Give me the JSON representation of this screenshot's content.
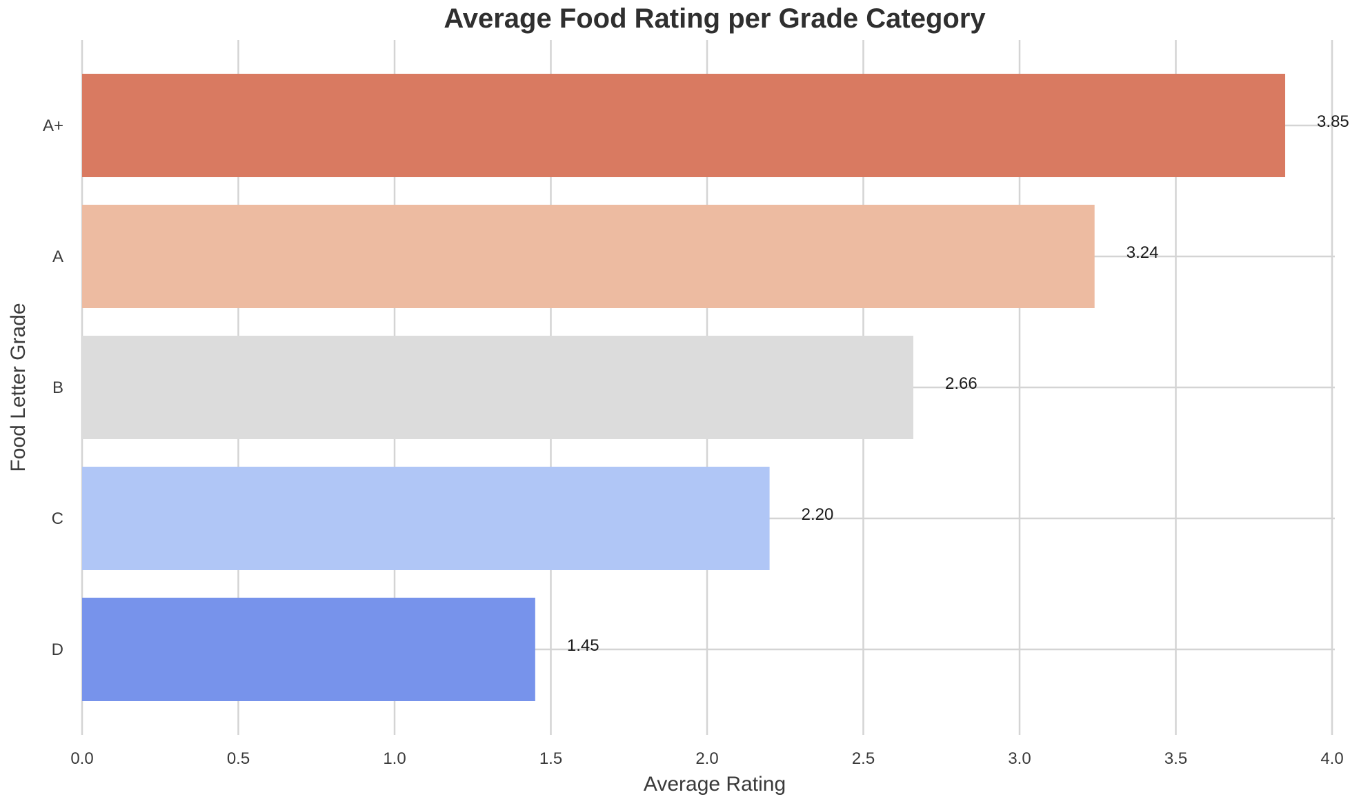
{
  "chart_data": {
    "type": "bar",
    "orientation": "horizontal",
    "title": "Average Food Rating per Grade Category",
    "xlabel": "Average Rating",
    "ylabel": "Food Letter Grade",
    "categories": [
      "A+",
      "A",
      "B",
      "C",
      "D"
    ],
    "values": [
      3.85,
      3.24,
      2.66,
      2.2,
      1.45
    ],
    "value_labels": [
      "3.85",
      "3.24",
      "2.66",
      "2.20",
      "1.45"
    ],
    "colors": [
      "#d97a61",
      "#edbba1",
      "#dcdcdc",
      "#b0c6f6",
      "#7793eb"
    ],
    "xlim": [
      0,
      4.05
    ],
    "xticks": [
      0.0,
      0.5,
      1.0,
      1.5,
      2.0,
      2.5,
      3.0,
      3.5,
      4.0
    ],
    "xtick_labels": [
      "0.0",
      "0.5",
      "1.0",
      "1.5",
      "2.0",
      "2.5",
      "3.0",
      "3.5",
      "4.0"
    ],
    "grid": true,
    "grid_color": "#d4d4d4"
  }
}
